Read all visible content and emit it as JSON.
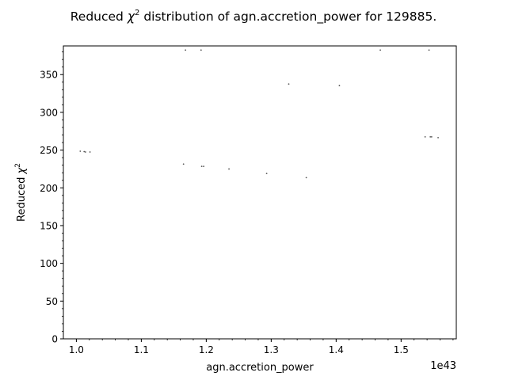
{
  "chart_data": {
    "type": "scatter",
    "title_prefix": "Reduced ",
    "title_symbol": "χ",
    "title_sup": "2",
    "title_suffix": " distribution of agn.accretion_power for 129885.",
    "xlabel": "agn.accretion_power",
    "x_offset_label": "1e43",
    "ylabel_prefix": "Reduced ",
    "ylabel_symbol": "χ",
    "ylabel_sup": "2",
    "xlim": [
      0.98,
      1.585
    ],
    "ylim": [
      0,
      388
    ],
    "x_ticks": [
      1.0,
      1.1,
      1.2,
      1.3,
      1.4,
      1.5
    ],
    "x_tick_labels": [
      "1.0",
      "1.1",
      "1.2",
      "1.3",
      "1.4",
      "1.5"
    ],
    "y_ticks": [
      0,
      50,
      100,
      150,
      200,
      250,
      300,
      350
    ],
    "y_tick_labels": [
      "0",
      "50",
      "100",
      "150",
      "200",
      "250",
      "300",
      "350"
    ],
    "grid": false,
    "marker_color": "#555555",
    "points": [
      {
        "x": 1.006,
        "y": 248.5
      },
      {
        "x": 1.012,
        "y": 248.0
      },
      {
        "x": 1.014,
        "y": 247.5
      },
      {
        "x": 1.021,
        "y": 247.5
      },
      {
        "x": 1.165,
        "y": 231.5
      },
      {
        "x": 1.168,
        "y": 382.5
      },
      {
        "x": 1.192,
        "y": 382.5
      },
      {
        "x": 1.193,
        "y": 228.5
      },
      {
        "x": 1.196,
        "y": 228.5
      },
      {
        "x": 1.235,
        "y": 225.0
      },
      {
        "x": 1.293,
        "y": 219.0
      },
      {
        "x": 1.327,
        "y": 337.5
      },
      {
        "x": 1.354,
        "y": 213.5
      },
      {
        "x": 1.405,
        "y": 335.5
      },
      {
        "x": 1.468,
        "y": 382.5
      },
      {
        "x": 1.537,
        "y": 267.5
      },
      {
        "x": 1.543,
        "y": 382.5
      },
      {
        "x": 1.545,
        "y": 267.5
      },
      {
        "x": 1.547,
        "y": 267.5
      },
      {
        "x": 1.557,
        "y": 266.5
      }
    ]
  }
}
